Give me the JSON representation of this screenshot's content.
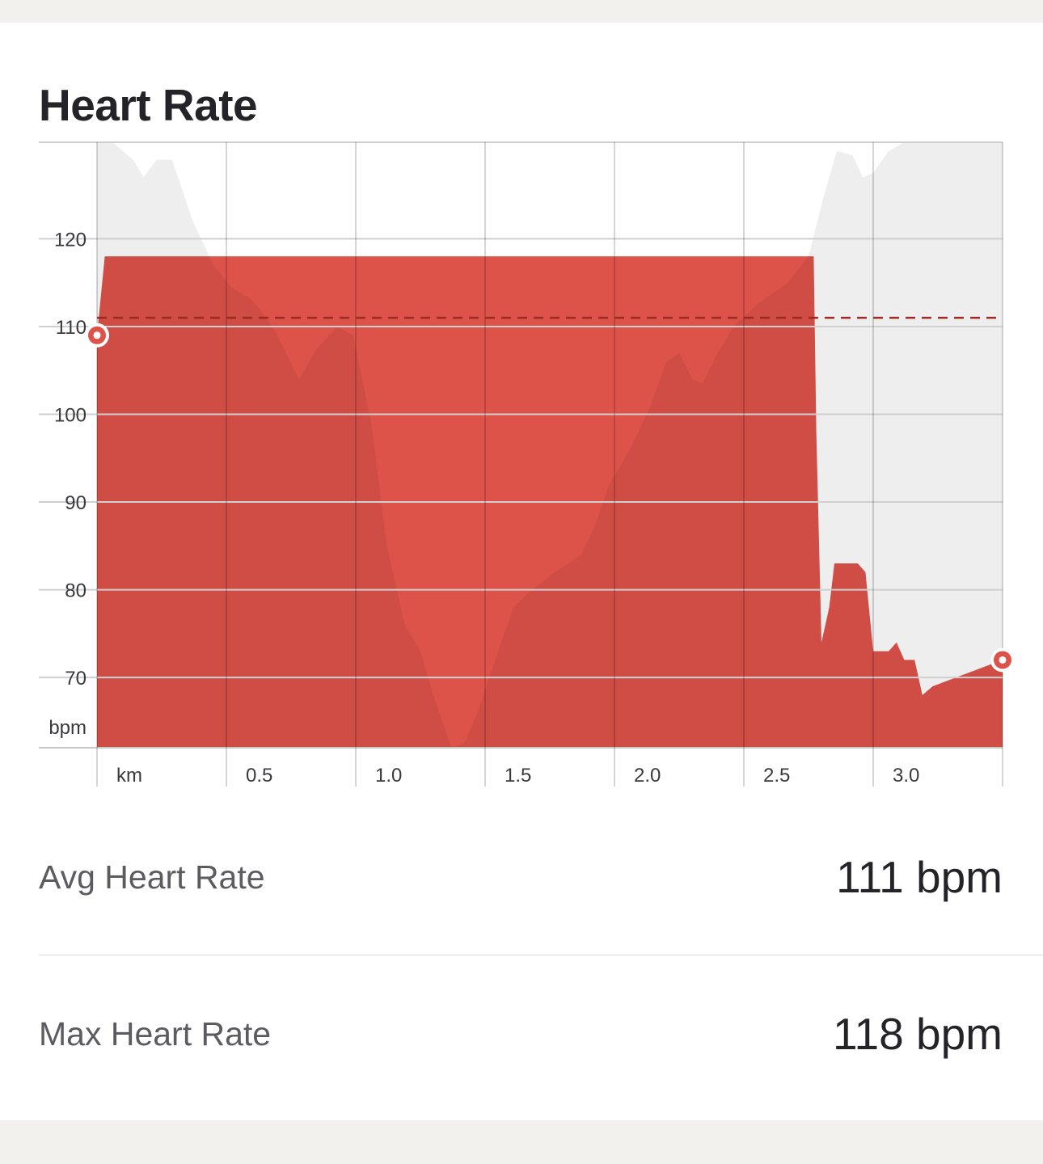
{
  "card": {
    "title": "Heart Rate"
  },
  "chart_data": {
    "type": "area",
    "xlabel": "km",
    "ylabel": "bpm",
    "xlim": [
      -0.2,
      3.3
    ],
    "ylim": [
      62,
      131
    ],
    "x_ticks": [
      {
        "value": -0.2,
        "label": "km"
      },
      {
        "value": 0.3,
        "label": "0.5"
      },
      {
        "value": 0.8,
        "label": "1.0"
      },
      {
        "value": 1.3,
        "label": "1.5"
      },
      {
        "value": 1.8,
        "label": "2.0"
      },
      {
        "value": 2.3,
        "label": "2.5"
      },
      {
        "value": 2.8,
        "label": "3.0"
      }
    ],
    "y_ticks": [
      {
        "value": 120,
        "label": "120"
      },
      {
        "value": 110,
        "label": "110"
      },
      {
        "value": 100,
        "label": "100"
      },
      {
        "value": 90,
        "label": "90"
      },
      {
        "value": 80,
        "label": "80"
      },
      {
        "value": 70,
        "label": "70"
      }
    ],
    "average": 111,
    "colors": {
      "heart_rate": "#de5349",
      "elevation_backdrop": "#eeeeee",
      "average_line": "#9c2a22",
      "grid": "#cfcfcf"
    },
    "series": [
      {
        "role": "heart_rate",
        "points": [
          [
            -0.2,
            109
          ],
          [
            -0.17,
            118
          ],
          [
            2.57,
            118
          ],
          [
            2.58,
            98
          ],
          [
            2.6,
            74
          ],
          [
            2.63,
            78
          ],
          [
            2.65,
            83
          ],
          [
            2.74,
            83
          ],
          [
            2.77,
            82
          ],
          [
            2.8,
            73
          ],
          [
            2.86,
            73
          ],
          [
            2.89,
            74
          ],
          [
            2.92,
            72
          ],
          [
            2.96,
            72
          ],
          [
            2.99,
            68
          ],
          [
            3.03,
            69
          ],
          [
            3.3,
            72
          ]
        ],
        "endpoints": {
          "start": 109,
          "end": 72
        }
      },
      {
        "role": "elevation_backdrop",
        "points": [
          [
            -0.2,
            131
          ],
          [
            -0.14,
            131
          ],
          [
            -0.06,
            129
          ],
          [
            -0.02,
            127
          ],
          [
            0.03,
            129
          ],
          [
            0.09,
            129
          ],
          [
            0.17,
            122
          ],
          [
            0.25,
            117
          ],
          [
            0.32,
            114.5
          ],
          [
            0.4,
            113
          ],
          [
            0.48,
            110
          ],
          [
            0.58,
            104
          ],
          [
            0.65,
            107.5
          ],
          [
            0.73,
            110
          ],
          [
            0.79,
            109
          ],
          [
            0.86,
            99
          ],
          [
            0.92,
            85
          ],
          [
            0.99,
            76
          ],
          [
            1.05,
            73
          ],
          [
            1.1,
            68
          ],
          [
            1.17,
            62
          ],
          [
            1.22,
            62.5
          ],
          [
            1.27,
            66
          ],
          [
            1.35,
            73
          ],
          [
            1.41,
            78
          ],
          [
            1.48,
            80
          ],
          [
            1.57,
            82
          ],
          [
            1.67,
            84
          ],
          [
            1.72,
            87
          ],
          [
            1.78,
            92
          ],
          [
            1.86,
            96
          ],
          [
            1.94,
            101
          ],
          [
            2.0,
            106
          ],
          [
            2.05,
            107
          ],
          [
            2.1,
            104
          ],
          [
            2.14,
            103.5
          ],
          [
            2.2,
            107
          ],
          [
            2.26,
            110
          ],
          [
            2.35,
            112.5
          ],
          [
            2.47,
            115
          ],
          [
            2.55,
            118
          ],
          [
            2.61,
            125
          ],
          [
            2.66,
            130
          ],
          [
            2.72,
            129.5
          ],
          [
            2.76,
            127
          ],
          [
            2.8,
            127.5
          ],
          [
            2.86,
            130
          ],
          [
            2.92,
            131
          ],
          [
            3.3,
            131
          ]
        ]
      }
    ]
  },
  "stats": {
    "avg_label": "Avg Heart Rate",
    "avg_value": "111 bpm",
    "max_label": "Max Heart Rate",
    "max_value": "118 bpm"
  }
}
